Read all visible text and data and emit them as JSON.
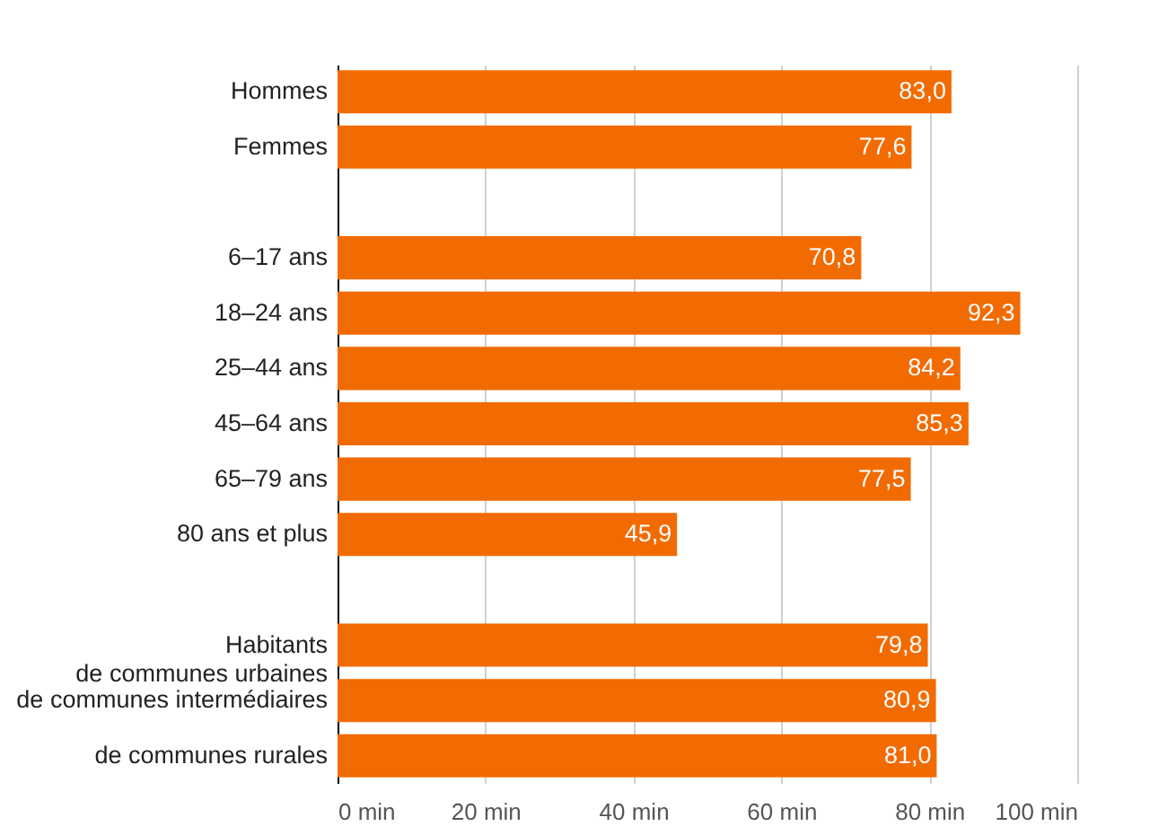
{
  "chart_data": {
    "type": "bar",
    "orientation": "horizontal",
    "categories": [
      "Hommes",
      "Femmes",
      null,
      "6–17 ans",
      "18–24 ans",
      "25–44 ans",
      "45–64 ans",
      "65–79 ans",
      "80 ans et plus",
      null,
      "Habitants\nde communes urbaines",
      "de communes intermédiaires",
      "de communes rurales"
    ],
    "values": [
      83.0,
      77.6,
      null,
      70.8,
      92.3,
      84.2,
      85.3,
      77.5,
      45.9,
      null,
      79.8,
      80.9,
      81.0
    ],
    "value_labels": [
      "83,0",
      "77,6",
      null,
      "70,8",
      "92,3",
      "84,2",
      "85,3",
      "77,5",
      "45,9",
      null,
      "79,8",
      "80,9",
      "81,0"
    ],
    "color": "#f26b00",
    "xlim": [
      0,
      100
    ],
    "xticks": [
      {
        "value": 0,
        "label": "0 min"
      },
      {
        "value": 20,
        "label": "20 min"
      },
      {
        "value": 40,
        "label": "40 min"
      },
      {
        "value": 60,
        "label": "60 min"
      },
      {
        "value": 80,
        "label": "80 min"
      },
      {
        "value": 100,
        "label": "100 min"
      }
    ],
    "grid": "x"
  }
}
